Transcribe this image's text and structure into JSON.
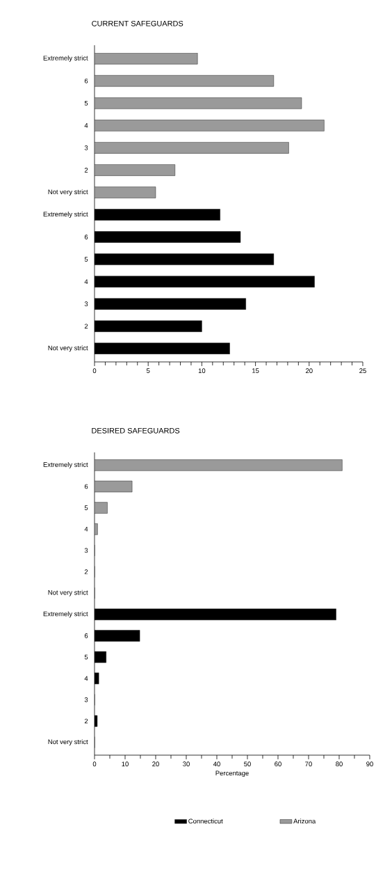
{
  "chart_data": [
    {
      "type": "bar",
      "orientation": "horizontal",
      "title": "CURRENT SAFEGUARDS",
      "categories": [
        "Extremely strict",
        "6",
        "5",
        "4",
        "3",
        "2",
        "Not very strict",
        "Extremely strict",
        "6",
        "5",
        "4",
        "3",
        "2",
        "Not very strict"
      ],
      "series": [
        {
          "color": "#000000",
          "values": [
            null,
            null,
            null,
            null,
            null,
            null,
            null,
            11.7,
            13.6,
            16.7,
            20.5,
            14.1,
            10.0,
            12.6
          ]
        },
        {
          "color": "#9a9a9a",
          "values": [
            9.6,
            16.7,
            19.3,
            21.4,
            18.1,
            7.5,
            5.7,
            null,
            null,
            null,
            null,
            null,
            null,
            null
          ]
        }
      ],
      "xlim": [
        0,
        25
      ],
      "xticks": [
        0,
        5,
        10,
        15,
        20,
        25
      ],
      "legend": false
    },
    {
      "type": "bar",
      "orientation": "horizontal",
      "title": "DESIRED SAFEGUARDS",
      "xlabel": "Percentage",
      "categories": [
        "Extremely strict",
        "6",
        "5",
        "4",
        "3",
        "2",
        "Not very strict",
        "Extremely strict",
        "6",
        "5",
        "4",
        "3",
        "2",
        "Not very strict"
      ],
      "series": [
        {
          "name": "Connecticut",
          "color": "#000000",
          "values": [
            null,
            null,
            null,
            null,
            null,
            null,
            null,
            79,
            14.8,
            3.8,
            1.4,
            0,
            0.9,
            0
          ]
        },
        {
          "name": "Arizona",
          "color": "#9a9a9a",
          "values": [
            81,
            12.3,
            4.2,
            1.0,
            0,
            0,
            0,
            null,
            null,
            null,
            null,
            null,
            null,
            null
          ]
        }
      ],
      "xlim": [
        0,
        90
      ],
      "xticks": [
        0,
        10,
        20,
        30,
        40,
        50,
        60,
        70,
        80,
        90
      ],
      "legend": "bottom"
    }
  ]
}
